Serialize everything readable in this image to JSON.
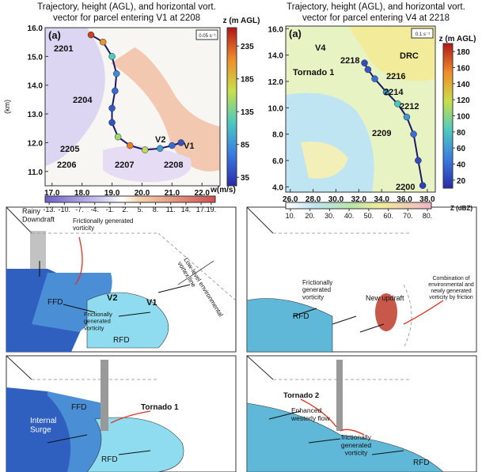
{
  "maps": [
    {
      "title": [
        "Trajectory, height (AGL), and horizontal vort.",
        "vector for parcel entering V1 at 2208"
      ],
      "panel_label": "(a)",
      "y_label": "(km)",
      "xlim": [
        16.77,
        22.6
      ],
      "ylim": [
        10.5,
        16.0
      ],
      "xticks": [
        {
          "value": 17,
          "label": "17.0"
        },
        {
          "value": 18,
          "label": "18.0"
        },
        {
          "value": 19,
          "label": "19.0"
        },
        {
          "value": 20,
          "label": "20.0"
        },
        {
          "value": 21,
          "label": "21.0"
        },
        {
          "value": 22,
          "label": "22.0"
        }
      ],
      "yticks": [
        {
          "value": 11,
          "label": "11.0"
        },
        {
          "value": 12,
          "label": "12.0"
        },
        {
          "value": 13,
          "label": "13.0"
        },
        {
          "value": 14,
          "label": "14.0"
        },
        {
          "value": 15,
          "label": "15.0"
        },
        {
          "value": 16,
          "label": "16.0"
        }
      ],
      "height_colorbar": {
        "title": "z (m AGL)",
        "lim": [
          22,
          263
        ],
        "ticks": [
          35,
          85,
          135,
          185,
          235
        ]
      },
      "field_colorbar": {
        "title": "w(m/s)",
        "lim": [
          -13.8,
          19.8
        ],
        "ticks": [
          {
            "value": -13,
            "label": "-13."
          },
          {
            "value": -10,
            "label": "-10."
          },
          {
            "value": -7,
            "label": "-7."
          },
          {
            "value": -4,
            "label": "-4."
          },
          {
            "value": -1,
            "label": "-1."
          },
          {
            "value": 2,
            "label": "2."
          },
          {
            "value": 5,
            "label": "5."
          },
          {
            "value": 8,
            "label": "8."
          },
          {
            "value": 11,
            "label": "11."
          },
          {
            "value": 14,
            "label": "14."
          },
          {
            "value": 17,
            "label": "17."
          },
          {
            "value": 19,
            "label": "19."
          }
        ]
      },
      "scale_label": "0.05 s⁻¹",
      "trajectory": {
        "x": [
          18.3,
          18.7,
          19.0,
          19.15,
          19.1,
          19.0,
          19.0,
          19.2,
          19.6,
          20.1,
          20.6,
          21.0,
          21.3
        ],
        "y": [
          15.75,
          15.5,
          15.0,
          14.4,
          13.8,
          13.2,
          12.7,
          12.2,
          11.9,
          11.75,
          11.8,
          11.9,
          12.0
        ],
        "z": [
          245,
          210,
          120,
          80,
          60,
          50,
          45,
          150,
          220,
          160,
          90,
          60,
          45
        ]
      },
      "annotations": [
        "2201",
        "2204",
        "2205",
        "2206",
        "2207",
        "V2",
        "V1",
        "2208"
      ]
    },
    {
      "title": [
        "Trajectory, height (AGL), and horizontal vort.",
        "vector for parcel entering V4 at 2218"
      ],
      "panel_label": "(a)",
      "xlim": [
        25.6,
        38.7
      ],
      "ylim": [
        3.6,
        16.2
      ],
      "xticks": [
        {
          "value": 26,
          "label": "26.0"
        },
        {
          "value": 28,
          "label": "28.0"
        },
        {
          "value": 30,
          "label": "30.0"
        },
        {
          "value": 32,
          "label": "32.0"
        },
        {
          "value": 34,
          "label": "34.0"
        },
        {
          "value": 36,
          "label": "36.0"
        },
        {
          "value": 38,
          "label": "38.0"
        }
      ],
      "yticks": [
        {
          "value": 4,
          "label": "4.0"
        },
        {
          "value": 6,
          "label": "6.0"
        },
        {
          "value": 8,
          "label": "8.0"
        },
        {
          "value": 10,
          "label": "10.0"
        },
        {
          "value": 12,
          "label": "12.0"
        },
        {
          "value": 14,
          "label": "14.0"
        },
        {
          "value": 16,
          "label": "16.0"
        }
      ],
      "height_colorbar": {
        "title": "z (m AGL)",
        "lim": [
          10,
          190
        ],
        "ticks": [
          20,
          40,
          60,
          80,
          100,
          120,
          140,
          160,
          180
        ]
      },
      "field_colorbar": {
        "title": "Z (dBZ)",
        "lim": [
          7.6,
          82
        ],
        "ticks": [
          {
            "value": 10,
            "label": "10."
          },
          {
            "value": 20,
            "label": "20."
          },
          {
            "value": 30,
            "label": "30."
          },
          {
            "value": 40,
            "label": "40."
          },
          {
            "value": 50,
            "label": "50."
          },
          {
            "value": 60,
            "label": "60."
          },
          {
            "value": 70,
            "label": "70."
          },
          {
            "value": 80,
            "label": "80."
          }
        ]
      },
      "scale_label": "0.1 s⁻¹",
      "trajectory": {
        "x": [
          37.6,
          37.2,
          36.8,
          36.2,
          35.4,
          34.4,
          33.4,
          32.8,
          32.5
        ],
        "y": [
          4.1,
          6.0,
          8.0,
          9.3,
          10.3,
          11.2,
          12.2,
          12.9,
          13.4
        ],
        "z": [
          20,
          25,
          40,
          60,
          80,
          60,
          40,
          30,
          25
        ]
      },
      "annotations": [
        "V4",
        "2218",
        "DRC",
        "Tornado 1",
        "2216",
        "2214",
        "2212",
        "2209",
        "2200"
      ]
    }
  ],
  "schematics": [
    {
      "labels": [
        [
          "Rainy",
          "Downdraft"
        ],
        [
          "Frictionally generated",
          "vorticity"
        ],
        [
          "Low-level environmental",
          "vortex line"
        ],
        [
          "FFD"
        ],
        [
          "V2"
        ],
        [
          "V1"
        ],
        [
          "Frictionally",
          "generated",
          "vorticity"
        ],
        [
          "RFD"
        ]
      ]
    },
    {
      "labels": [
        [
          "Frictionally",
          "generated",
          "vorticity"
        ],
        [
          "New updraft"
        ],
        [
          "Combination of",
          "environmental and",
          "newly generated",
          "vorticity by friction"
        ],
        [
          "RFD"
        ]
      ]
    },
    {
      "labels": [
        [
          "FFD"
        ],
        [
          "Tornado 1"
        ],
        [
          "Internal",
          "Surge"
        ],
        [
          "RFD"
        ]
      ]
    },
    {
      "labels": [
        [
          "Tornado 2"
        ],
        [
          "Enhanced",
          "westerly flow"
        ],
        [
          "frictionally",
          "generated",
          "vorticity"
        ],
        [
          "RFD"
        ]
      ]
    }
  ]
}
